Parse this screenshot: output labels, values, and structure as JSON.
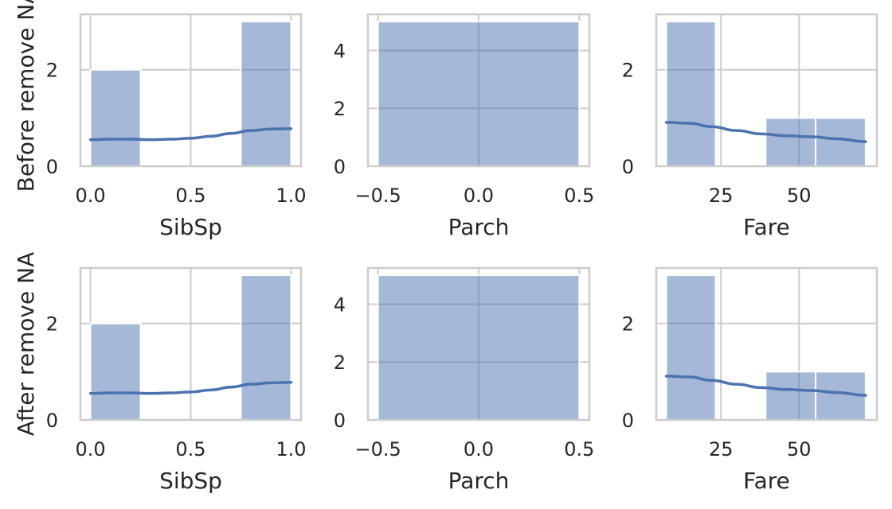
{
  "chart_data": [
    {
      "type": "histogram",
      "row_label": "Before remove NA",
      "xlabel": "SibSp",
      "ylabel": "",
      "xlim": [
        -0.05,
        1.05
      ],
      "ylim": [
        0,
        3.15
      ],
      "xticks": [
        0.0,
        0.5,
        1.0
      ],
      "xticklabels": [
        "0.0",
        "0.5",
        "1.0"
      ],
      "yticks": [
        0,
        2
      ],
      "yticklabels": [
        "0",
        "2"
      ],
      "bins": [
        {
          "x0": 0.0,
          "x1": 0.25,
          "count": 2
        },
        {
          "x0": 0.75,
          "x1": 1.0,
          "count": 3
        }
      ],
      "kde": {
        "x": [
          0.0,
          0.1,
          0.2,
          0.3,
          0.4,
          0.5,
          0.6,
          0.7,
          0.8,
          0.9,
          1.0
        ],
        "y": [
          0.55,
          0.56,
          0.56,
          0.55,
          0.56,
          0.58,
          0.62,
          0.68,
          0.74,
          0.77,
          0.78
        ]
      }
    },
    {
      "type": "histogram",
      "xlabel": "Parch",
      "ylabel": "",
      "xlim": [
        -0.55,
        0.55
      ],
      "ylim": [
        0,
        5.25
      ],
      "xticks": [
        -0.5,
        0.0,
        0.5
      ],
      "xticklabels": [
        "−0.5",
        "0.0",
        "0.5"
      ],
      "yticks": [
        0,
        2,
        4
      ],
      "yticklabels": [
        "0",
        "2",
        "4"
      ],
      "bins": [
        {
          "x0": -0.5,
          "x1": 0.5,
          "count": 5
        }
      ]
    },
    {
      "type": "histogram",
      "xlabel": "Fare",
      "ylabel": "",
      "xlim": [
        4.3,
        74.9
      ],
      "ylim": [
        0,
        3.15
      ],
      "xticks": [
        25,
        50
      ],
      "xticklabels": [
        "25",
        "50"
      ],
      "yticks": [
        0,
        2
      ],
      "yticklabels": [
        "0",
        "2"
      ],
      "bins": [
        {
          "x0": 7.5,
          "x1": 23.3,
          "count": 3
        },
        {
          "x0": 39.3,
          "x1": 55.3,
          "count": 1
        },
        {
          "x0": 55.3,
          "x1": 71.3,
          "count": 1
        }
      ],
      "kde": {
        "x": [
          7.5,
          15,
          22,
          30,
          38,
          46,
          54,
          62,
          71.3
        ],
        "y": [
          0.91,
          0.89,
          0.82,
          0.74,
          0.67,
          0.63,
          0.61,
          0.57,
          0.51
        ]
      }
    },
    {
      "type": "histogram",
      "row_label": "After remove NA",
      "xlabel": "SibSp",
      "ylabel": "",
      "xlim": [
        -0.05,
        1.05
      ],
      "ylim": [
        0,
        3.15
      ],
      "xticks": [
        0.0,
        0.5,
        1.0
      ],
      "xticklabels": [
        "0.0",
        "0.5",
        "1.0"
      ],
      "yticks": [
        0,
        2
      ],
      "yticklabels": [
        "0",
        "2"
      ],
      "bins": [
        {
          "x0": 0.0,
          "x1": 0.25,
          "count": 2
        },
        {
          "x0": 0.75,
          "x1": 1.0,
          "count": 3
        }
      ],
      "kde": {
        "x": [
          0.0,
          0.1,
          0.2,
          0.3,
          0.4,
          0.5,
          0.6,
          0.7,
          0.8,
          0.9,
          1.0
        ],
        "y": [
          0.55,
          0.56,
          0.56,
          0.55,
          0.56,
          0.58,
          0.62,
          0.68,
          0.74,
          0.77,
          0.78
        ]
      }
    },
    {
      "type": "histogram",
      "xlabel": "Parch",
      "ylabel": "",
      "xlim": [
        -0.55,
        0.55
      ],
      "ylim": [
        0,
        5.25
      ],
      "xticks": [
        -0.5,
        0.0,
        0.5
      ],
      "xticklabels": [
        "−0.5",
        "0.0",
        "0.5"
      ],
      "yticks": [
        0,
        2,
        4
      ],
      "yticklabels": [
        "0",
        "2",
        "4"
      ],
      "bins": [
        {
          "x0": -0.5,
          "x1": 0.5,
          "count": 5
        }
      ]
    },
    {
      "type": "histogram",
      "xlabel": "Fare",
      "ylabel": "",
      "xlim": [
        4.3,
        74.9
      ],
      "ylim": [
        0,
        3.15
      ],
      "xticks": [
        25,
        50
      ],
      "xticklabels": [
        "25",
        "50"
      ],
      "yticks": [
        0,
        2
      ],
      "yticklabels": [
        "0",
        "2"
      ],
      "bins": [
        {
          "x0": 7.5,
          "x1": 23.3,
          "count": 3
        },
        {
          "x0": 39.3,
          "x1": 55.3,
          "count": 1
        },
        {
          "x0": 55.3,
          "x1": 71.3,
          "count": 1
        }
      ],
      "kde": {
        "x": [
          7.5,
          15,
          22,
          30,
          38,
          46,
          54,
          62,
          71.3
        ],
        "y": [
          0.91,
          0.89,
          0.82,
          0.74,
          0.67,
          0.63,
          0.61,
          0.57,
          0.51
        ]
      }
    }
  ],
  "colors": {
    "bar_fill": "#4c72b0",
    "kde_line": "#4c72b0",
    "grid": "#cccccc",
    "spine": "#cccccc",
    "text": "#262626"
  }
}
